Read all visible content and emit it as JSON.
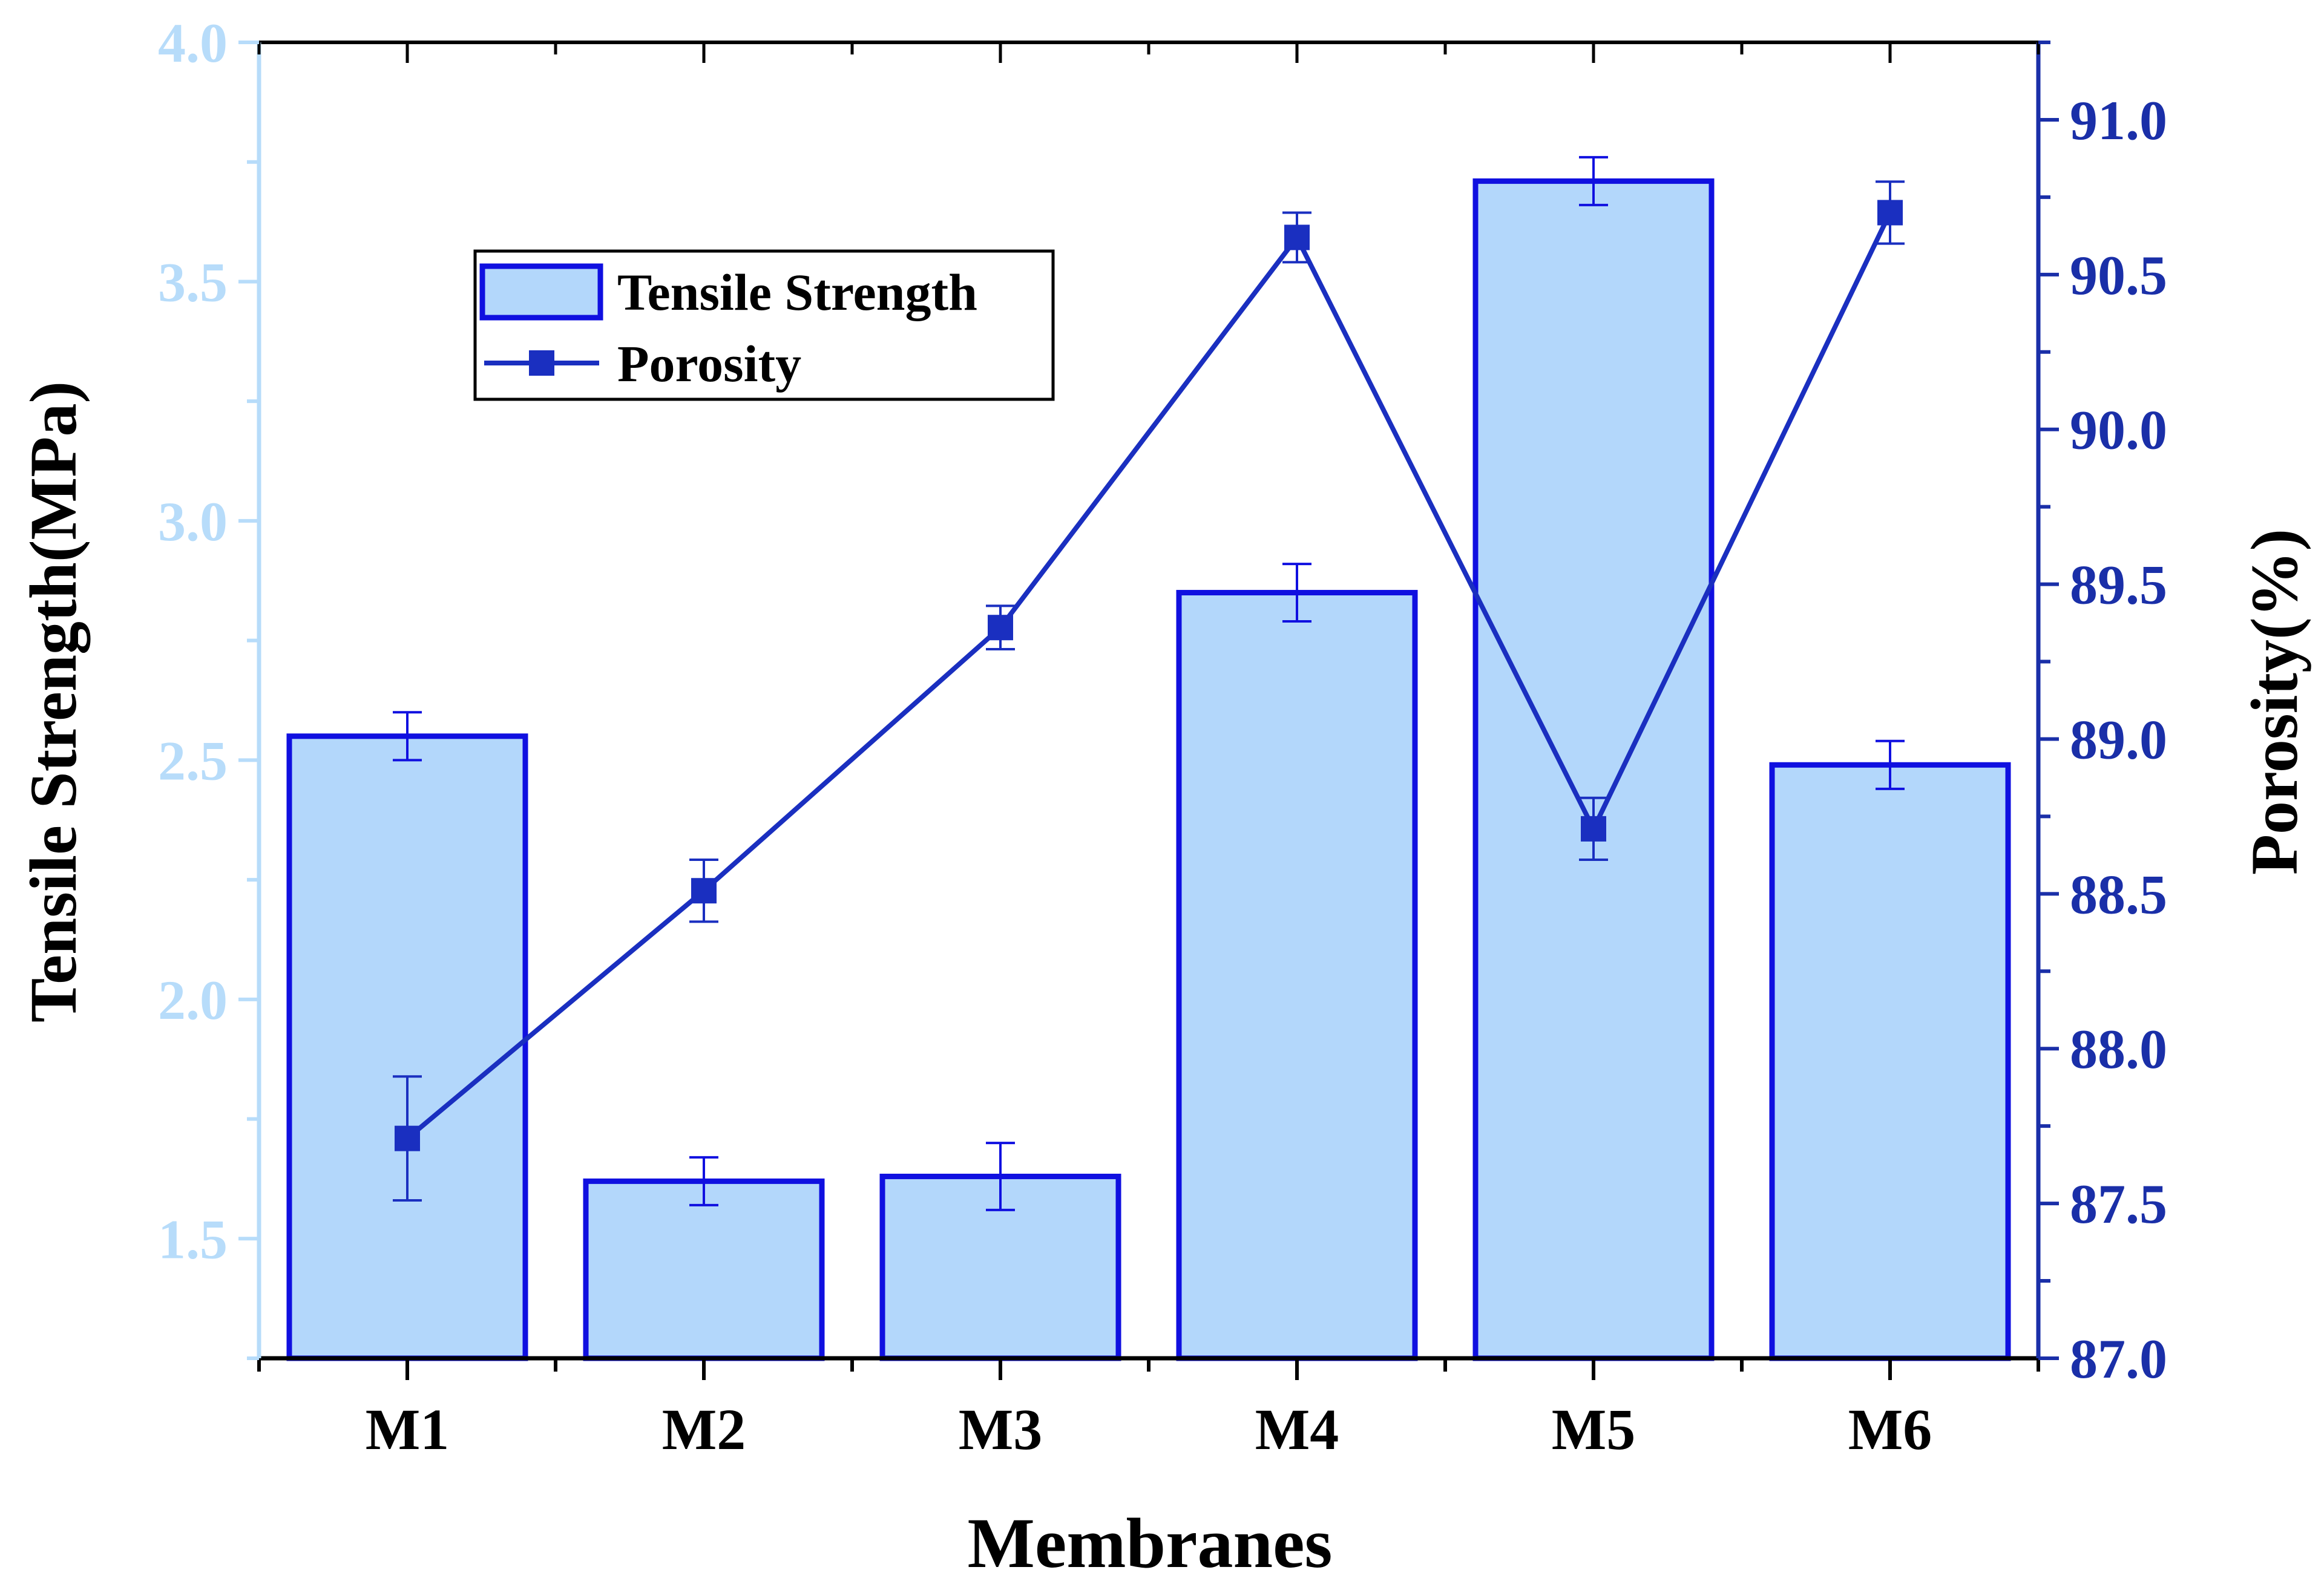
{
  "chart_data": {
    "type": "bar+line",
    "categories": [
      "M1",
      "M2",
      "M3",
      "M4",
      "M5",
      "M6"
    ],
    "xlabel": "Membranes",
    "left_axis": {
      "label": "Tensile Strength(MPa)",
      "ylim": [
        1.25,
        4.0
      ],
      "ticks": [
        "1.5",
        "2.0",
        "2.5",
        "3.0",
        "3.5",
        "4.0"
      ],
      "color": "#b7dcfa"
    },
    "right_axis": {
      "label": "Porosity(%)",
      "ylim": [
        87.0,
        91.25
      ],
      "ticks": [
        "87.0",
        "87.5",
        "88.0",
        "88.5",
        "89.0",
        "89.5",
        "90.0",
        "90.5",
        "91.0"
      ],
      "color": "#1a2fa8"
    },
    "series": [
      {
        "name": "Tensile Strength",
        "type": "bar",
        "axis": "left",
        "values": [
          2.55,
          1.62,
          1.63,
          2.85,
          3.71,
          2.49
        ],
        "errors": [
          0.05,
          0.05,
          0.07,
          0.06,
          0.05,
          0.05
        ],
        "fill": "#b3d7fb",
        "stroke": "#1010e0"
      },
      {
        "name": "Porosity",
        "type": "line",
        "axis": "right",
        "values": [
          87.71,
          88.51,
          89.36,
          90.62,
          88.71,
          90.7
        ],
        "errors": [
          0.2,
          0.1,
          0.07,
          0.08,
          0.1,
          0.1
        ],
        "color": "#1a2fc0"
      }
    ],
    "legend": {
      "position": "top-left",
      "entries": [
        "Tensile Strength",
        "Porosity"
      ]
    }
  }
}
